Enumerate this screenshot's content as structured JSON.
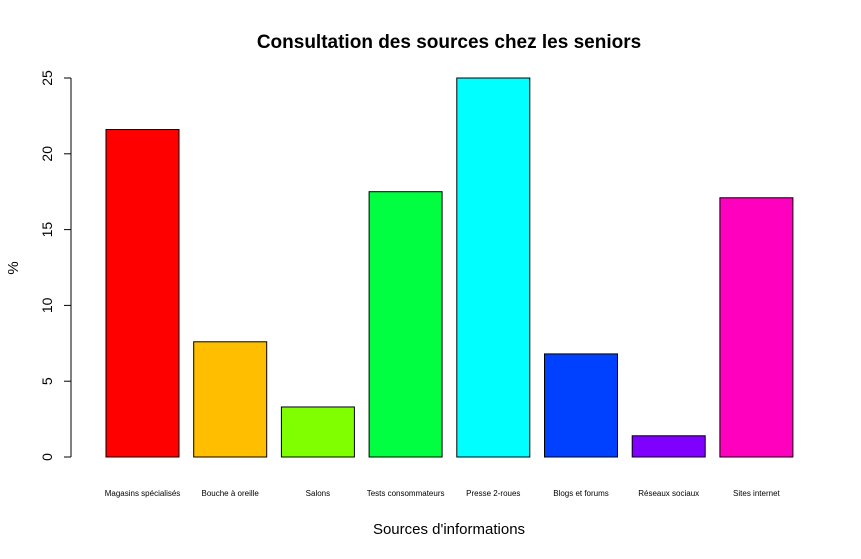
{
  "chart_data": {
    "type": "bar",
    "title": "Consultation des sources chez les seniors",
    "xlabel": "Sources d'informations",
    "ylabel": "%",
    "ylim": [
      0,
      25
    ],
    "yticks": [
      0,
      5,
      10,
      15,
      20,
      25
    ],
    "grid": false,
    "categories": [
      "Magasins spécialisés",
      "Bouche à oreille",
      "Salons",
      "Tests consommateurs",
      "Presse 2-roues",
      "Blogs et forums",
      "Réseaux sociaux",
      "Sites internet"
    ],
    "values": [
      21.6,
      7.6,
      3.3,
      17.5,
      25.0,
      6.8,
      1.4,
      17.1
    ],
    "colors": [
      "#FF0000",
      "#FFBF00",
      "#80FF00",
      "#00FF40",
      "#00FFFF",
      "#0040FF",
      "#8000FF",
      "#FF00BF"
    ]
  }
}
